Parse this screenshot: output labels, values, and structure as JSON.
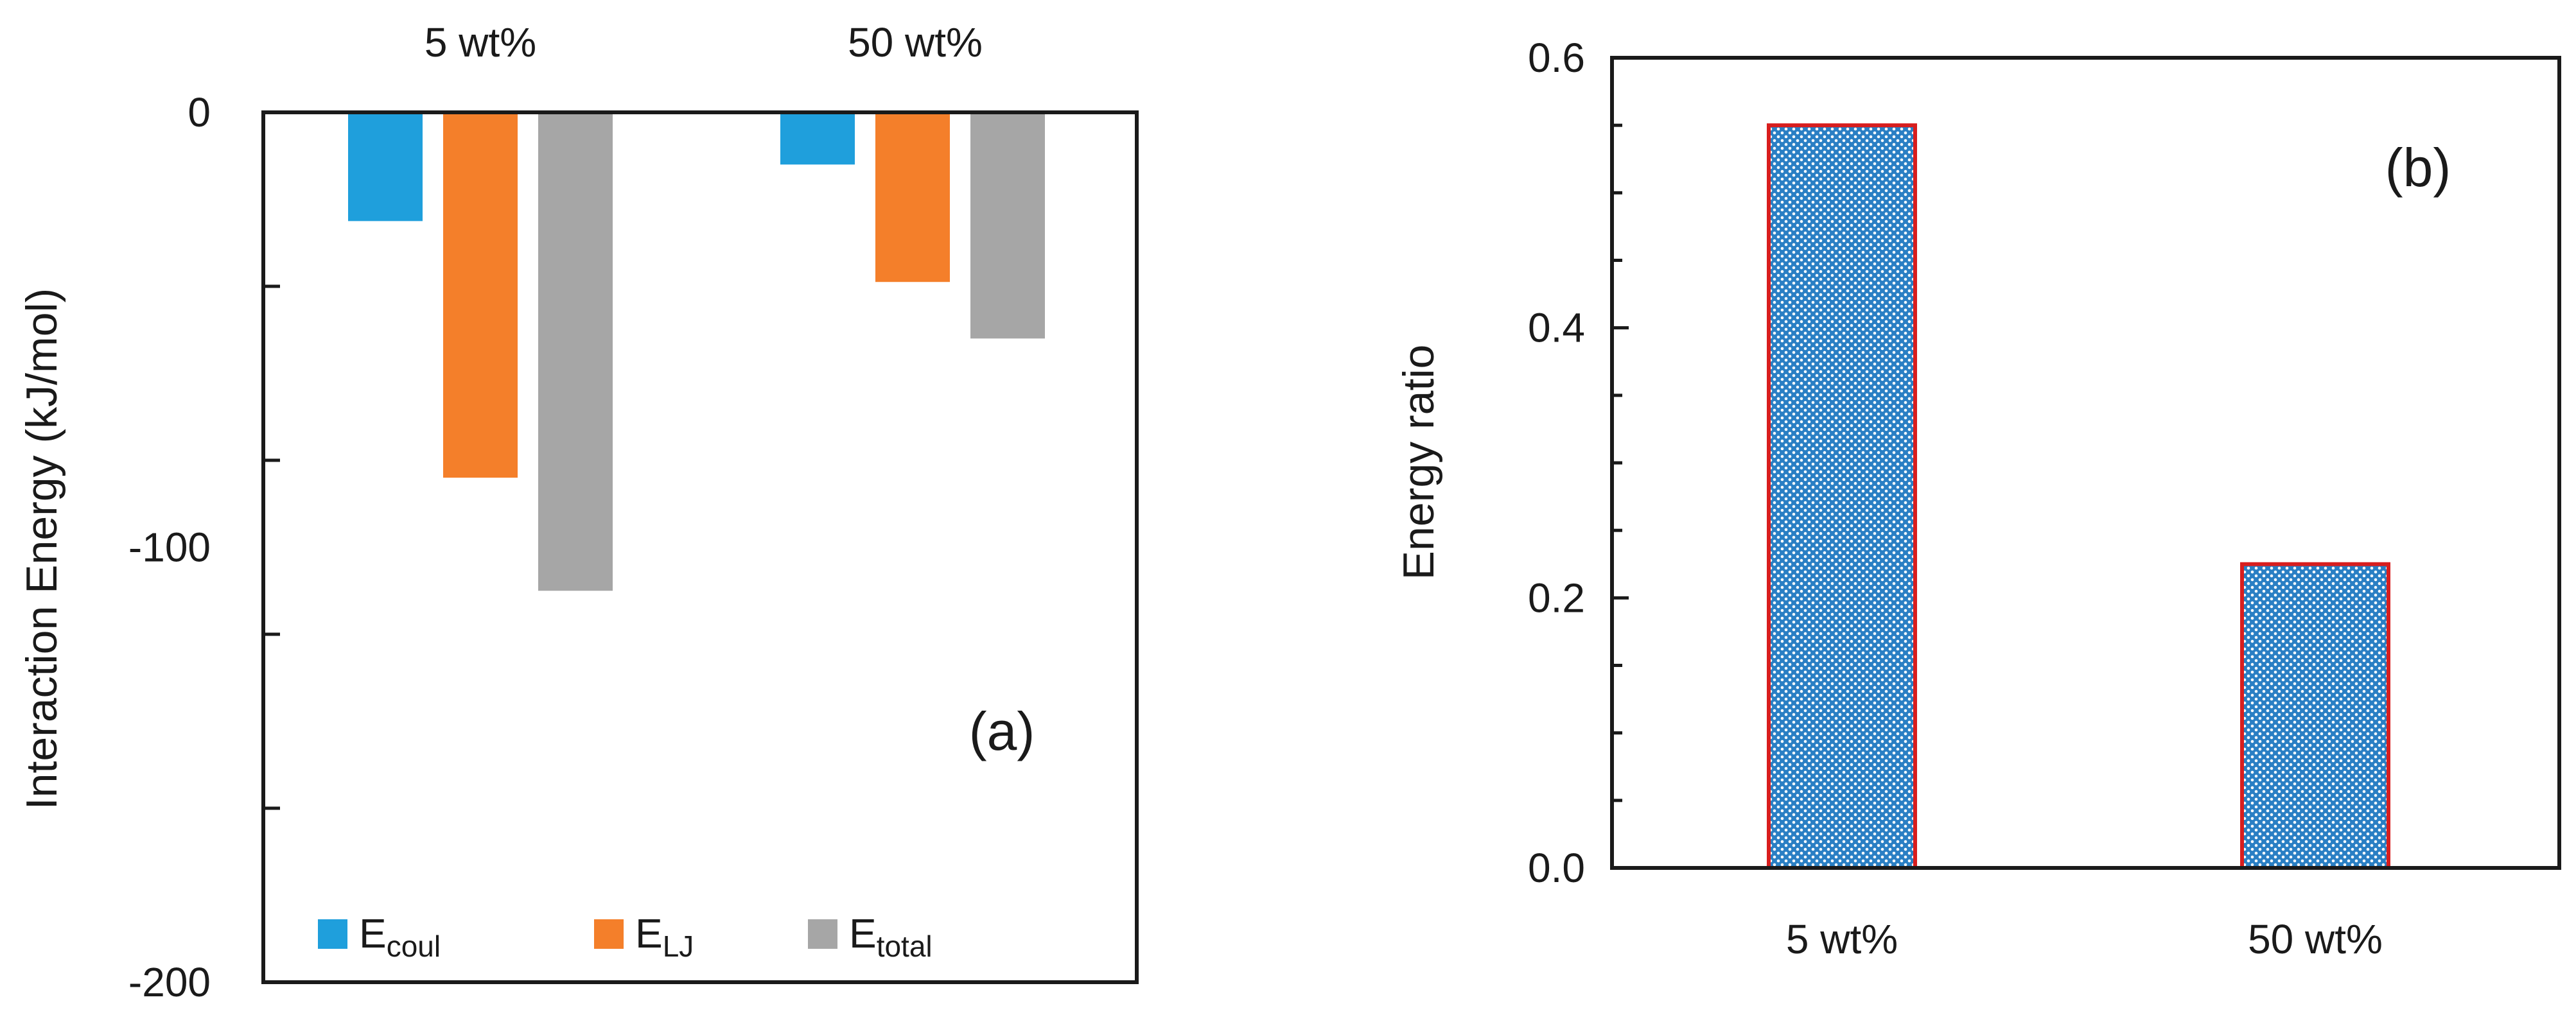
{
  "chart_data": [
    {
      "panel": "(a)",
      "type": "bar",
      "categories": [
        "5 wt%",
        "50 wt%"
      ],
      "series": [
        {
          "name": "E_coul",
          "label_main": "E",
          "label_sub": "coul",
          "color": "#1f9fdc",
          "values": [
            -25,
            -12
          ]
        },
        {
          "name": "E_LJ",
          "label_main": "E",
          "label_sub": "LJ",
          "color": "#f47f2a",
          "values": [
            -84,
            -39
          ]
        },
        {
          "name": "E_total",
          "label_main": "E",
          "label_sub": "total",
          "color": "#a6a6a6",
          "values": [
            -110,
            -52
          ]
        }
      ],
      "title": "",
      "xlabel": "",
      "ylabel": "Interaction Energy (kJ/mol)",
      "ylim": [
        -200,
        0
      ],
      "yticks": [
        0,
        -100,
        -200
      ],
      "ytick_labels": [
        "0",
        "-100",
        "-200"
      ],
      "category_axis": "top",
      "legend_position": "bottom",
      "grid": false
    },
    {
      "panel": "(b)",
      "type": "bar",
      "categories": [
        "5 wt%",
        "50 wt%"
      ],
      "values": [
        0.55,
        0.225
      ],
      "fill_color": "#2a7fc4",
      "edge_color": "#d81e1e",
      "title": "",
      "xlabel": "",
      "ylabel": "Energy ratio",
      "ylim": [
        0,
        0.6
      ],
      "yticks": [
        0,
        0.2,
        0.4,
        0.6
      ],
      "ytick_labels": [
        "0.0",
        "0.2",
        "0.4",
        "0.6"
      ],
      "legend_position": "none",
      "grid": false
    }
  ]
}
